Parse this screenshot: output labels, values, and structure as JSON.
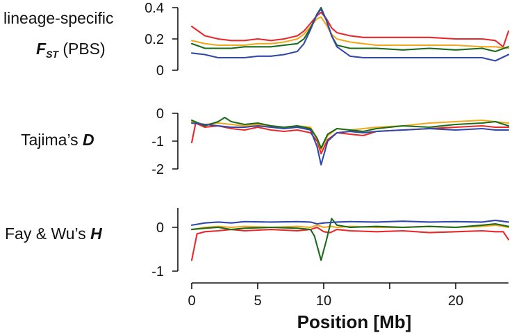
{
  "chart_data": {
    "type": "line",
    "xlabel": "Position [Mb]",
    "xlim": [
      0,
      24
    ],
    "xticks": [
      0,
      5,
      10,
      20
    ],
    "series_colors": [
      "#e8282a",
      "#f0a81c",
      "#1a6b1a",
      "#3048a8"
    ],
    "panels": [
      {
        "label_plain": "lineage-specific",
        "label_symbol": "F",
        "label_subscript": "ST",
        "label_suffix": " (PBS)",
        "ylim": [
          0,
          0.4
        ],
        "yticks": [
          "0.4",
          "0.2",
          "0"
        ],
        "ytick_values": [
          0.4,
          0.2,
          0
        ],
        "series": [
          {
            "name": "red",
            "color": "#e8282a",
            "x": [
              0,
              1,
              2,
              3,
              4,
              5,
              6,
              7,
              8,
              8.5,
              9,
              9.5,
              9.8,
              10.2,
              10.6,
              11,
              12,
              13,
              14,
              16,
              18,
              20,
              22,
              23,
              23.6,
              24
            ],
            "y": [
              0.28,
              0.22,
              0.2,
              0.19,
              0.19,
              0.2,
              0.19,
              0.2,
              0.22,
              0.25,
              0.3,
              0.35,
              0.37,
              0.33,
              0.27,
              0.24,
              0.22,
              0.21,
              0.21,
              0.21,
              0.21,
              0.2,
              0.2,
              0.19,
              0.15,
              0.25
            ]
          },
          {
            "name": "orange",
            "color": "#f0a81c",
            "x": [
              0,
              1,
              2,
              3,
              4,
              5,
              6,
              7,
              8,
              8.5,
              9,
              9.5,
              9.8,
              10.2,
              10.6,
              11,
              12,
              13,
              14,
              16,
              18,
              20,
              22,
              23,
              24
            ],
            "y": [
              0.19,
              0.17,
              0.16,
              0.16,
              0.16,
              0.17,
              0.17,
              0.18,
              0.2,
              0.23,
              0.28,
              0.33,
              0.34,
              0.29,
              0.23,
              0.2,
              0.18,
              0.17,
              0.16,
              0.16,
              0.16,
              0.16,
              0.15,
              0.15,
              0.14
            ]
          },
          {
            "name": "green",
            "color": "#1a6b1a",
            "x": [
              0,
              1,
              2,
              3,
              4,
              5,
              6,
              7,
              8,
              8.5,
              9,
              9.5,
              9.8,
              10.2,
              10.6,
              11,
              12,
              13,
              14,
              16,
              18,
              20,
              22,
              23,
              24
            ],
            "y": [
              0.17,
              0.14,
              0.14,
              0.14,
              0.15,
              0.15,
              0.15,
              0.16,
              0.17,
              0.2,
              0.27,
              0.36,
              0.4,
              0.32,
              0.22,
              0.16,
              0.14,
              0.14,
              0.14,
              0.13,
              0.14,
              0.13,
              0.14,
              0.12,
              0.15
            ]
          },
          {
            "name": "blue",
            "color": "#3048a8",
            "x": [
              0,
              1,
              2,
              3,
              4,
              5,
              6,
              7,
              8,
              8.5,
              9,
              9.5,
              9.8,
              10.2,
              10.6,
              11,
              12,
              13,
              14,
              16,
              18,
              20,
              22,
              23,
              24
            ],
            "y": [
              0.11,
              0.1,
              0.08,
              0.08,
              0.08,
              0.09,
              0.09,
              0.1,
              0.12,
              0.17,
              0.26,
              0.36,
              0.39,
              0.32,
              0.22,
              0.15,
              0.09,
              0.08,
              0.08,
              0.08,
              0.08,
              0.08,
              0.08,
              0.06,
              0.1
            ]
          }
        ]
      },
      {
        "label_plain": "Tajima’s ",
        "label_symbol": "D",
        "ylim": [
          -2,
          0
        ],
        "yticks": [
          "0",
          "-1",
          "-2"
        ],
        "ytick_values": [
          0,
          -1,
          -2
        ],
        "series": [
          {
            "name": "red",
            "color": "#e8282a",
            "x": [
              0,
              0.3,
              1,
              2,
              3,
              4,
              5,
              6,
              7,
              8,
              9,
              9.5,
              9.8,
              10.3,
              11,
              12,
              13,
              14,
              16,
              18,
              20,
              22,
              23,
              24
            ],
            "y": [
              -1.05,
              -0.35,
              -0.5,
              -0.45,
              -0.55,
              -0.6,
              -0.5,
              -0.6,
              -0.65,
              -0.6,
              -0.7,
              -1.0,
              -1.45,
              -0.95,
              -0.7,
              -0.75,
              -0.8,
              -0.65,
              -0.6,
              -0.55,
              -0.5,
              -0.45,
              -0.5,
              -0.5
            ]
          },
          {
            "name": "orange",
            "color": "#f0a81c",
            "x": [
              0,
              1,
              2,
              3,
              4,
              5,
              6,
              7,
              8,
              9,
              9.5,
              9.8,
              10.3,
              11,
              12,
              13,
              14,
              16,
              18,
              20,
              22,
              23,
              24
            ],
            "y": [
              -0.3,
              -0.4,
              -0.35,
              -0.4,
              -0.45,
              -0.4,
              -0.45,
              -0.5,
              -0.45,
              -0.5,
              -0.9,
              -1.3,
              -0.8,
              -0.55,
              -0.6,
              -0.55,
              -0.5,
              -0.45,
              -0.35,
              -0.3,
              -0.25,
              -0.3,
              -0.35
            ]
          },
          {
            "name": "green",
            "color": "#1a6b1a",
            "x": [
              0,
              1,
              2,
              2.5,
              3,
              4,
              5,
              6,
              7,
              8,
              9,
              9.5,
              9.8,
              10.3,
              11,
              12,
              13,
              14,
              16,
              18,
              20,
              22,
              23,
              24
            ],
            "y": [
              -0.25,
              -0.45,
              -0.3,
              -0.15,
              -0.3,
              -0.4,
              -0.35,
              -0.45,
              -0.5,
              -0.45,
              -0.55,
              -0.9,
              -1.25,
              -0.75,
              -0.55,
              -0.6,
              -0.65,
              -0.55,
              -0.45,
              -0.5,
              -0.4,
              -0.35,
              -0.3,
              -0.45
            ]
          },
          {
            "name": "blue",
            "color": "#3048a8",
            "x": [
              0,
              1,
              2,
              3,
              4,
              5,
              6,
              7,
              8,
              9,
              9.5,
              9.8,
              10.3,
              11,
              12,
              13,
              14,
              16,
              18,
              20,
              22,
              23,
              24
            ],
            "y": [
              -0.35,
              -0.4,
              -0.45,
              -0.5,
              -0.5,
              -0.45,
              -0.5,
              -0.55,
              -0.5,
              -0.6,
              -1.2,
              -1.85,
              -1.0,
              -0.7,
              -0.65,
              -0.7,
              -0.65,
              -0.6,
              -0.55,
              -0.6,
              -0.55,
              -0.6,
              -0.6
            ]
          }
        ]
      },
      {
        "label_plain": "Fay & Wu’s ",
        "label_symbol": "H",
        "ylim": [
          -1,
          0.4
        ],
        "yticks": [
          "0",
          "-1"
        ],
        "ytick_values": [
          0,
          -1
        ],
        "series": [
          {
            "name": "red",
            "color": "#e8282a",
            "x": [
              0,
              0.4,
              1,
              2,
              3,
              4,
              6,
              8,
              9,
              9.5,
              10,
              10.5,
              11,
              12,
              14,
              16,
              18,
              20,
              22,
              23,
              23.6,
              24
            ],
            "y": [
              -0.75,
              -0.15,
              -0.1,
              -0.08,
              -0.05,
              -0.08,
              -0.05,
              -0.08,
              -0.05,
              0.0,
              -0.1,
              -0.12,
              -0.05,
              -0.08,
              -0.1,
              -0.08,
              -0.12,
              -0.1,
              -0.08,
              -0.1,
              -0.1,
              -0.28
            ]
          },
          {
            "name": "orange",
            "color": "#f0a81c",
            "x": [
              0,
              1,
              2,
              3,
              4,
              6,
              8,
              9,
              9.5,
              10,
              10.5,
              11,
              12,
              14,
              16,
              18,
              20,
              22,
              23,
              24
            ],
            "y": [
              -0.05,
              0.0,
              0.02,
              0.0,
              0.02,
              0.0,
              0.02,
              0.0,
              0.05,
              0.0,
              0.02,
              0.0,
              0.02,
              0.0,
              0.0,
              0.02,
              0.0,
              0.02,
              0.05,
              0.0
            ]
          },
          {
            "name": "green",
            "color": "#1a6b1a",
            "x": [
              0,
              1,
              2,
              3,
              4,
              6,
              8,
              9,
              9.3,
              9.8,
              10.2,
              10.6,
              11,
              12,
              14,
              16,
              18,
              20,
              22,
              23,
              24
            ],
            "y": [
              -0.05,
              -0.02,
              0.0,
              -0.05,
              -0.02,
              0.0,
              -0.02,
              -0.05,
              -0.2,
              -0.75,
              -0.3,
              0.2,
              0.05,
              0.0,
              0.02,
              0.0,
              0.02,
              0.0,
              0.05,
              0.08,
              0.02
            ]
          },
          {
            "name": "blue",
            "color": "#3048a8",
            "x": [
              0,
              1,
              2,
              3,
              4,
              6,
              8,
              9,
              9.5,
              10,
              11,
              12,
              14,
              16,
              18,
              20,
              22,
              23,
              24
            ],
            "y": [
              0.05,
              0.1,
              0.12,
              0.1,
              0.13,
              0.12,
              0.13,
              0.12,
              0.08,
              0.1,
              0.12,
              0.13,
              0.12,
              0.14,
              0.12,
              0.13,
              0.12,
              0.16,
              0.12
            ]
          }
        ]
      }
    ]
  }
}
